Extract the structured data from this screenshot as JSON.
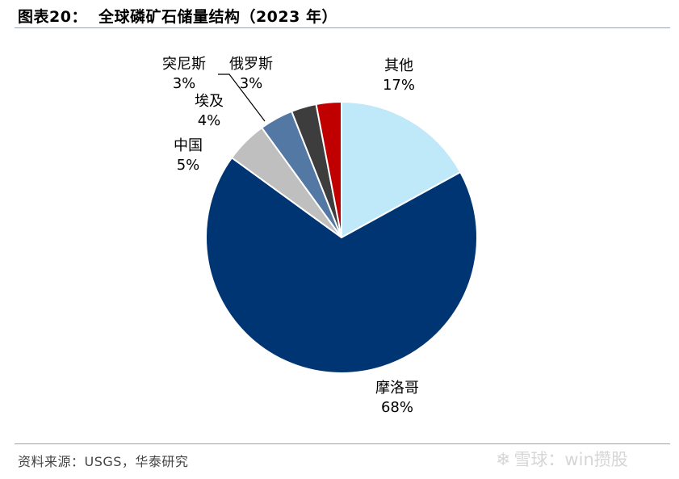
{
  "header": {
    "figure_label": "图表20：",
    "title": "全球磷矿石储量结构（2023 年）"
  },
  "footer": {
    "source": "资料来源：USGS，华泰研究",
    "watermark": "雪球：win攒股"
  },
  "chart_data": {
    "type": "pie",
    "title": "全球磷矿石储量结构（2023 年）",
    "unit": "%",
    "slices": [
      {
        "name": "其他",
        "value": 17,
        "label": "17%",
        "color": "#bfe8f8"
      },
      {
        "name": "摩洛哥",
        "value": 68,
        "label": "68%",
        "color": "#003574"
      },
      {
        "name": "中国",
        "value": 5,
        "label": "5%",
        "color": "#bfbfbf"
      },
      {
        "name": "埃及",
        "value": 4,
        "label": "4%",
        "color": "#5478a4"
      },
      {
        "name": "突尼斯",
        "value": 3,
        "label": "3%",
        "color": "#3d3d3d"
      },
      {
        "name": "俄罗斯",
        "value": 3,
        "label": "3%",
        "color": "#c00000"
      }
    ],
    "start_direction": "top",
    "direction": "clockwise",
    "legend": "none",
    "labels": "outside"
  }
}
